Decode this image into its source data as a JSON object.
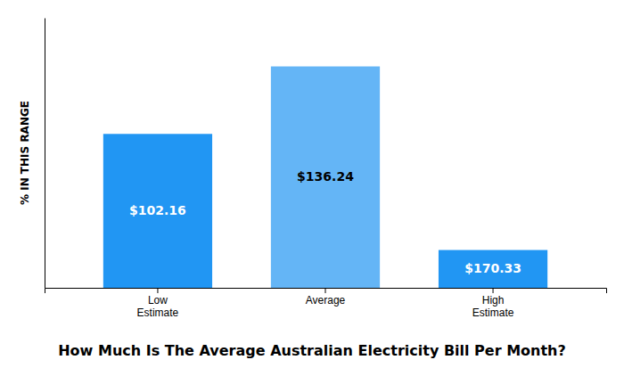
{
  "chart_data": {
    "type": "bar",
    "title": "How Much Is The Average Australian Electricity Bill Per Month?",
    "categories": [
      "Low\nEstimate",
      "Average",
      "High\nEstimate"
    ],
    "values": [
      57,
      82,
      14
    ],
    "colors": [
      "#2196F3",
      "#64B5F6",
      "#2196F3"
    ],
    "annotations": [
      "$102.16",
      "$136.24",
      "$170.33"
    ],
    "ylabel": "% IN THIS RANGE",
    "ylim": [
      0,
      100
    ],
    "tick_labels": "x",
    "grid": false
  }
}
